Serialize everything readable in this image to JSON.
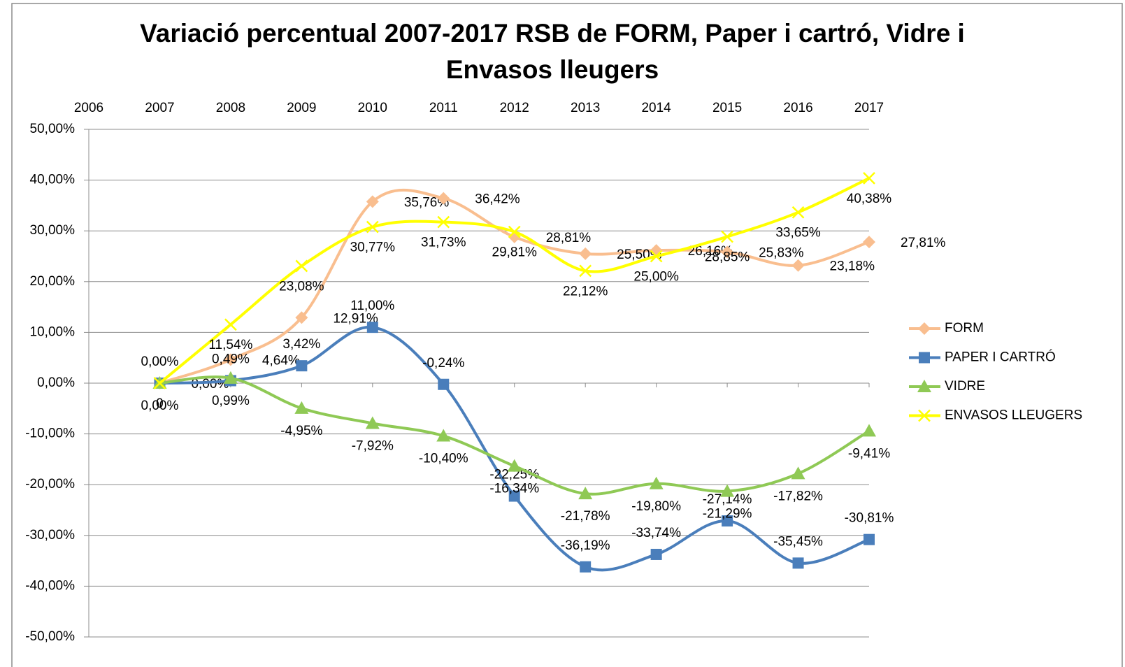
{
  "chart_data": {
    "type": "line",
    "title": "Variació percentual 2007-2017 RSB de FORM, Paper i cartró, Vidre i Envasos lleugers",
    "x": [
      2007,
      2008,
      2009,
      2010,
      2011,
      2012,
      2013,
      2014,
      2015,
      2016,
      2017
    ],
    "xlim": [
      2006,
      2017
    ],
    "xticks": [
      2006,
      2007,
      2008,
      2009,
      2010,
      2011,
      2012,
      2013,
      2014,
      2015,
      2016,
      2017
    ],
    "ylim": [
      -50,
      50
    ],
    "yticks": [
      {
        "value": -50,
        "label": "-50,00%"
      },
      {
        "value": -40,
        "label": "-40,00%"
      },
      {
        "value": -30,
        "label": "-30,00%"
      },
      {
        "value": -20,
        "label": "-20,00%"
      },
      {
        "value": -10,
        "label": "-10,00%"
      },
      {
        "value": 0,
        "label": "0,00%"
      },
      {
        "value": 10,
        "label": "10,00%"
      },
      {
        "value": 20,
        "label": "20,00%"
      },
      {
        "value": 30,
        "label": "30,00%"
      },
      {
        "value": 40,
        "label": "40,00%"
      },
      {
        "value": 50,
        "label": "50,00%"
      }
    ],
    "grid": true,
    "smooth": true,
    "legend": "right",
    "series": [
      {
        "name": "FORM",
        "color": "#f9be8f",
        "marker": "diamond",
        "values": [
          0,
          4.64,
          12.91,
          35.76,
          36.42,
          28.81,
          25.5,
          26.16,
          25.83,
          23.18,
          27.81
        ],
        "value_labels": [
          "0,00%",
          "4,64%",
          "12,91%",
          "35,76%",
          "36,42%",
          "28,81%",
          "25,50%",
          "26,16%",
          "25,83%",
          "23,18%",
          "27,81%"
        ]
      },
      {
        "name": "PAPER I CARTRÓ",
        "color": "#4a7ebb",
        "marker": "square",
        "values": [
          0,
          0.49,
          3.42,
          11.0,
          -0.24,
          -22.25,
          -36.19,
          -33.74,
          -27.14,
          -35.45,
          -30.81
        ],
        "value_labels": [
          "0,00%",
          "0,49%",
          "3,42%",
          "11,00%",
          "-0,24%",
          "-22,25%",
          "-36,19%",
          "-33,74%",
          "-27,14%",
          "-35,45%",
          "-30,81%"
        ]
      },
      {
        "name": "VIDRE",
        "color": "#8fc955",
        "marker": "triangle",
        "values": [
          0,
          0.99,
          -4.95,
          -7.92,
          -10.4,
          -16.34,
          -21.78,
          -19.8,
          -21.29,
          -17.82,
          -9.41
        ],
        "value_labels": [
          "0,00%",
          "0,99%",
          "-4,95%",
          "-7,92%",
          "-10,40%",
          "-16,34%",
          "-21,78%",
          "-19,80%",
          "-21,29%",
          "-17,82%",
          "-9,41%"
        ]
      },
      {
        "name": "ENVASOS LLEUGERS",
        "color": "#ffff00",
        "marker": "x",
        "values": [
          0,
          11.54,
          23.08,
          30.77,
          31.73,
          29.81,
          22.12,
          25.0,
          28.85,
          33.65,
          40.38
        ],
        "value_labels": [
          "0",
          "11,54%",
          "23,08%",
          "30,77%",
          "31,73%",
          "29,81%",
          "22,12%",
          "25,00%",
          "28,85%",
          "33,65%",
          "40,38%"
        ]
      }
    ]
  }
}
